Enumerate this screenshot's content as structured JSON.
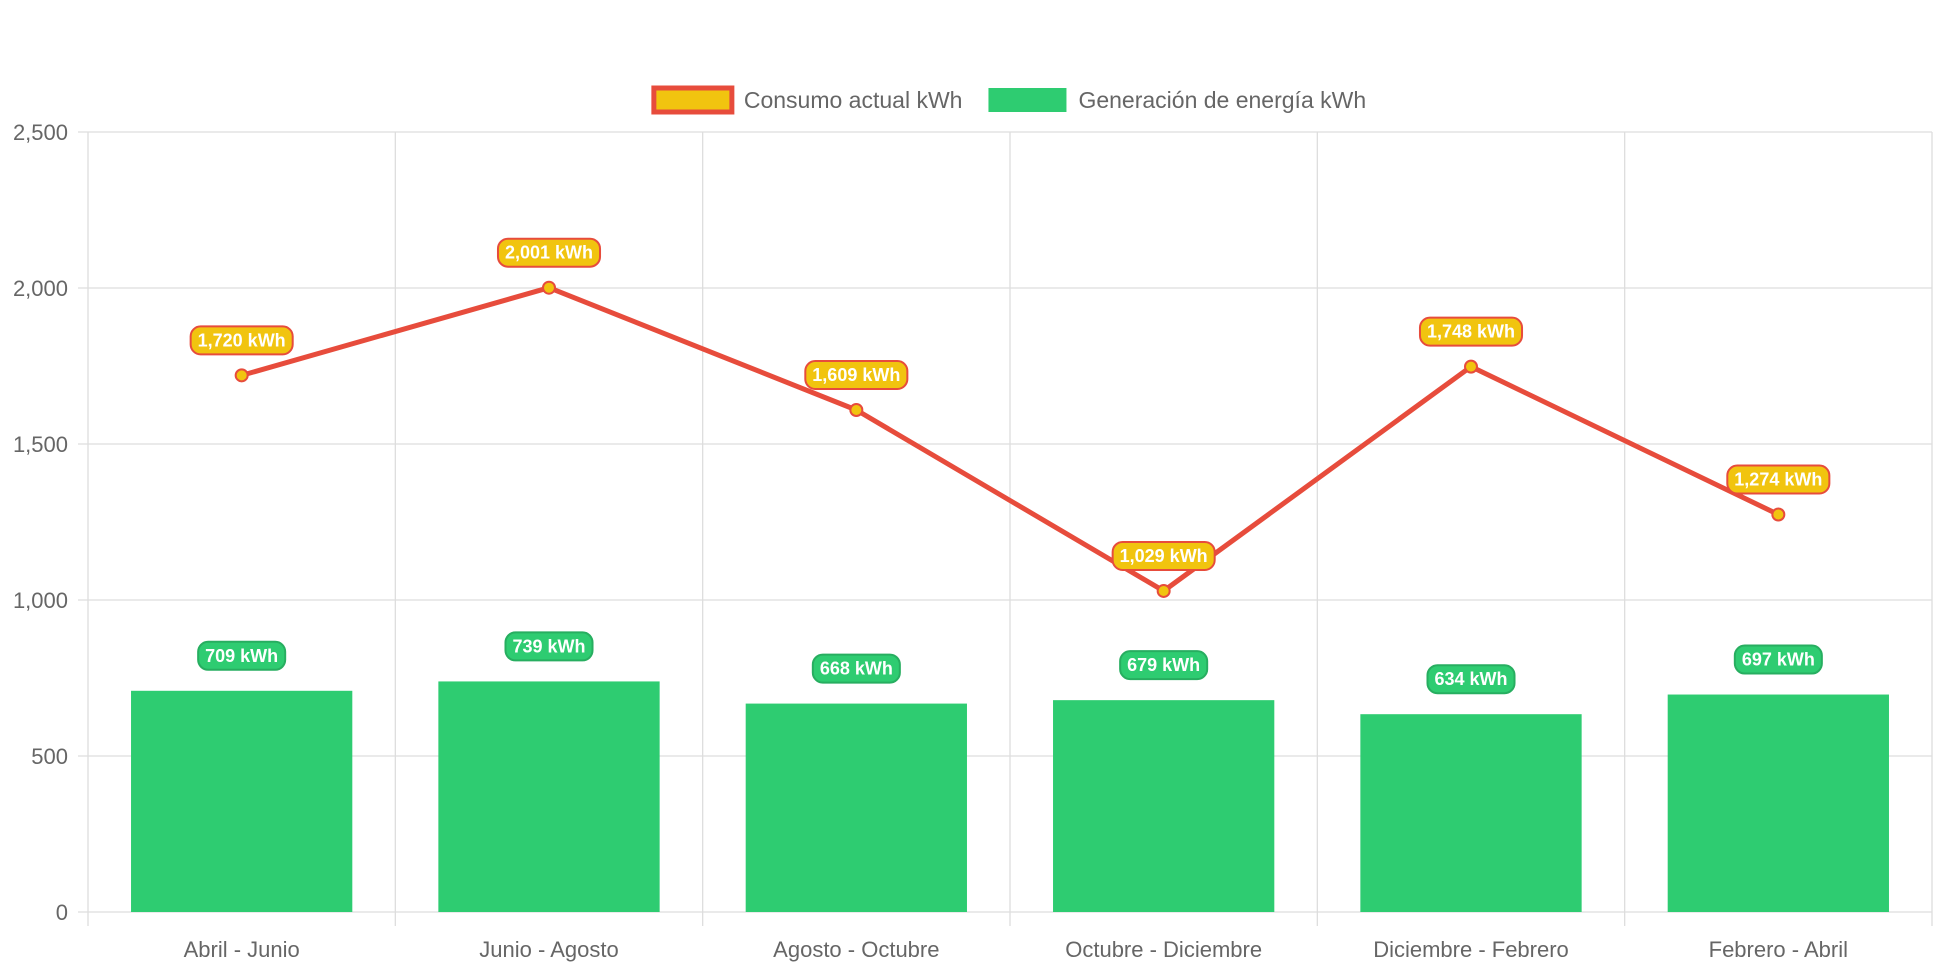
{
  "chart_data": {
    "type": "bar",
    "title": "",
    "xlabel": "",
    "ylabel": "",
    "categories": [
      "Abril - Junio",
      "Junio - Agosto",
      "Agosto - Octubre",
      "Octubre - Diciembre",
      "Diciembre - Febrero",
      "Febrero - Abril"
    ],
    "ylim": [
      0,
      2500
    ],
    "yticks": [
      0,
      500,
      1000,
      1500,
      2000,
      2500
    ],
    "ytick_labels": [
      "0",
      "500",
      "1,000",
      "1,500",
      "2,000",
      "2,500"
    ],
    "grid": true,
    "legend_position": "top",
    "series": [
      {
        "name": "Consumo actual kWh",
        "type": "line",
        "values": [
          1720,
          2001,
          1609,
          1029,
          1748,
          1274
        ],
        "data_labels": [
          "1,720 kWh",
          "2,001 kWh",
          "1,609 kWh",
          "1,029 kWh",
          "1,748 kWh",
          "1,274 kWh"
        ],
        "color": "#e74c3c",
        "fill_color": "#f1c40f"
      },
      {
        "name": "Generación de energía kWh",
        "type": "bar",
        "values": [
          709,
          739,
          668,
          679,
          634,
          697
        ],
        "data_labels": [
          "709 kWh",
          "739 kWh",
          "668 kWh",
          "679 kWh",
          "634 kWh",
          "697 kWh"
        ],
        "color": "#2ecc71",
        "border_color": "#27ae60"
      }
    ]
  }
}
